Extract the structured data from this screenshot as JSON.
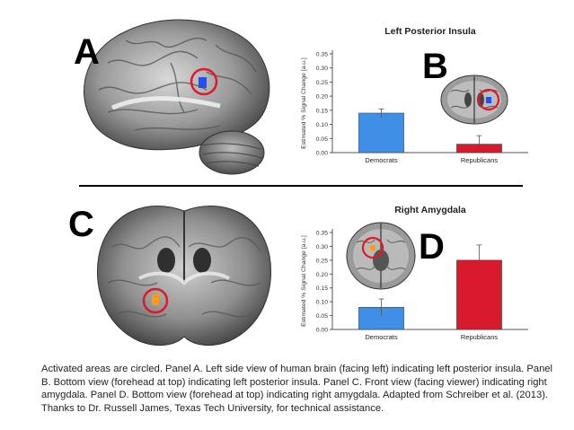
{
  "panels": {
    "a": "A",
    "b": "B",
    "c": "C",
    "d": "D"
  },
  "caption": "Activated areas are circled. Panel A. Left side view of human brain (facing left) indicating left posterior insula. Panel B. Bottom view (forehead at top) indicating left posterior insula. Panel C. Front view (facing viewer) indicating right amygdala. Panel D. Bottom view (forehead at top) indicating right amygdala. Adapted from Schreiber et al. (2013). Thanks to Dr. Russell James, Texas Tech University, for technical assistance.",
  "colors": {
    "democrats": "#3f8fe6",
    "republicans": "#d81a2c",
    "circle": "#e0182a",
    "activation_blue": "#1f4fff",
    "activation_orange": "#ff9a1a"
  },
  "chart_data": [
    {
      "type": "bar",
      "title": "Left Posterior Insula",
      "ylabel": "Estimated % Signal Change [a.u.]",
      "xlabel": "",
      "categories": [
        "Democrats",
        "Republicans"
      ],
      "values": [
        0.14,
        0.03
      ],
      "errors": [
        0.015,
        0.03
      ],
      "ylim": [
        0,
        0.35
      ],
      "yticks": [
        "0.00",
        "0.05",
        "0.10",
        "0.15",
        "0.20",
        "0.25",
        "0.30",
        "0.35"
      ],
      "grid": false
    },
    {
      "type": "bar",
      "title": "Right Amygdala",
      "ylabel": "Estimated % Signal Change [a.u.]",
      "xlabel": "",
      "categories": [
        "Democrats",
        "Republicans"
      ],
      "values": [
        0.08,
        0.25
      ],
      "errors": [
        0.03,
        0.055
      ],
      "ylim": [
        0,
        0.35
      ],
      "yticks": [
        "0.00",
        "0.05",
        "0.10",
        "0.15",
        "0.20",
        "0.25",
        "0.30",
        "0.35"
      ],
      "grid": false
    }
  ]
}
